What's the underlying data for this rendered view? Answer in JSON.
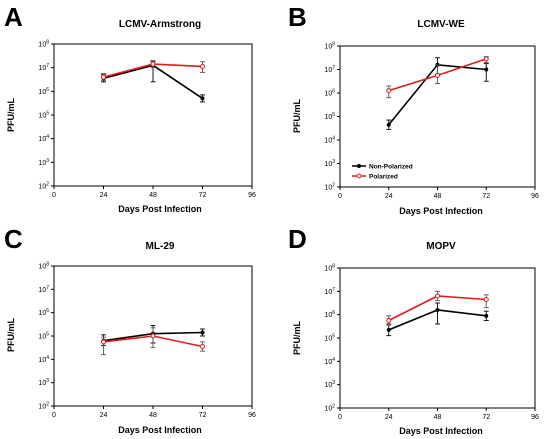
{
  "chart_data": [
    {
      "panel": "A",
      "type": "line",
      "title": "LCMV-Armstrong",
      "xlabel": "Days Post Infection",
      "ylabel": "PFU/mL",
      "x_ticks": [
        0,
        24,
        48,
        72,
        96
      ],
      "y_ticks": [
        "10^2",
        "10^3",
        "10^4",
        "10^5",
        "10^6",
        "10^7",
        "10^8"
      ],
      "xlim": [
        0,
        96
      ],
      "ylim_log10": [
        2,
        8
      ],
      "y_scale": "log",
      "grid": false,
      "series": [
        {
          "name": "Non-Polarized",
          "color": "#000000",
          "x": [
            24,
            48,
            72
          ],
          "y_log10": [
            6.55,
            7.1,
            5.7
          ],
          "err_lo": [
            6.4,
            6.4,
            5.55
          ],
          "err_hi": [
            6.7,
            7.25,
            5.85
          ]
        },
        {
          "name": "Polarized",
          "color": "#e41a1c",
          "x": [
            24,
            48,
            72
          ],
          "y_log10": [
            6.6,
            7.15,
            7.05
          ],
          "err_lo": [
            6.45,
            7.0,
            6.8
          ],
          "err_hi": [
            6.75,
            7.3,
            7.25
          ]
        }
      ]
    },
    {
      "panel": "B",
      "type": "line",
      "title": "LCMV-WE",
      "xlabel": "Days Post Infection",
      "ylabel": "PFU/mL",
      "x_ticks": [
        0,
        24,
        48,
        72,
        96
      ],
      "y_ticks": [
        "10^2",
        "10^3",
        "10^4",
        "10^5",
        "10^6",
        "10^7",
        "10^8"
      ],
      "xlim": [
        0,
        96
      ],
      "ylim_log10": [
        2,
        8
      ],
      "y_scale": "log",
      "grid": false,
      "legend": {
        "position": "bottom-left",
        "entries": [
          "Non-Polarized",
          "Polarized"
        ]
      },
      "series": [
        {
          "name": "Non-Polarized",
          "color": "#000000",
          "x": [
            24,
            48,
            72
          ],
          "y_log10": [
            4.65,
            7.2,
            7.0
          ],
          "err_lo": [
            4.45,
            6.8,
            6.5
          ],
          "err_hi": [
            4.85,
            7.5,
            7.25
          ]
        },
        {
          "name": "Polarized",
          "color": "#e41a1c",
          "x": [
            24,
            48,
            72
          ],
          "y_log10": [
            6.1,
            6.75,
            7.45
          ],
          "err_lo": [
            5.8,
            6.4,
            7.3
          ],
          "err_hi": [
            6.3,
            7.2,
            7.55
          ]
        }
      ]
    },
    {
      "panel": "C",
      "type": "line",
      "title": "ML-29",
      "xlabel": "Days Post Infection",
      "ylabel": "PFU/mL",
      "x_ticks": [
        0,
        24,
        48,
        72,
        96
      ],
      "y_ticks": [
        "10^2",
        "10^3",
        "10^4",
        "10^5",
        "10^6",
        "10^7",
        "10^8"
      ],
      "xlim": [
        0,
        96
      ],
      "ylim_log10": [
        2,
        8
      ],
      "y_scale": "log",
      "grid": false,
      "series": [
        {
          "name": "Non-Polarized",
          "color": "#000000",
          "x": [
            24,
            48,
            72
          ],
          "y_log10": [
            4.8,
            5.1,
            5.15
          ],
          "err_lo": [
            4.6,
            4.7,
            5.0
          ],
          "err_hi": [
            5.05,
            5.45,
            5.3
          ]
        },
        {
          "name": "Polarized",
          "color": "#e41a1c",
          "x": [
            24,
            48,
            72
          ],
          "y_log10": [
            4.75,
            5.0,
            4.55
          ],
          "err_lo": [
            4.2,
            4.5,
            4.35
          ],
          "err_hi": [
            4.95,
            5.35,
            4.75
          ]
        }
      ]
    },
    {
      "panel": "D",
      "type": "line",
      "title": "MOPV",
      "xlabel": "Days Post Infection",
      "ylabel": "PFU/mL",
      "x_ticks": [
        0,
        24,
        48,
        72,
        96
      ],
      "y_ticks": [
        "10^2",
        "10^3",
        "10^4",
        "10^5",
        "10^6",
        "10^7",
        "10^8"
      ],
      "xlim": [
        0,
        96
      ],
      "ylim_log10": [
        2,
        8
      ],
      "y_scale": "log",
      "grid": false,
      "series": [
        {
          "name": "Non-Polarized",
          "color": "#000000",
          "x": [
            24,
            48,
            72
          ],
          "y_log10": [
            5.35,
            6.2,
            5.95
          ],
          "err_lo": [
            5.1,
            5.6,
            5.75
          ],
          "err_hi": [
            5.6,
            6.5,
            6.15
          ]
        },
        {
          "name": "Polarized",
          "color": "#e41a1c",
          "x": [
            24,
            48,
            72
          ],
          "y_log10": [
            5.75,
            6.8,
            6.65
          ],
          "err_lo": [
            5.55,
            6.6,
            6.3
          ],
          "err_hi": [
            5.95,
            7.0,
            6.85
          ]
        }
      ]
    }
  ]
}
